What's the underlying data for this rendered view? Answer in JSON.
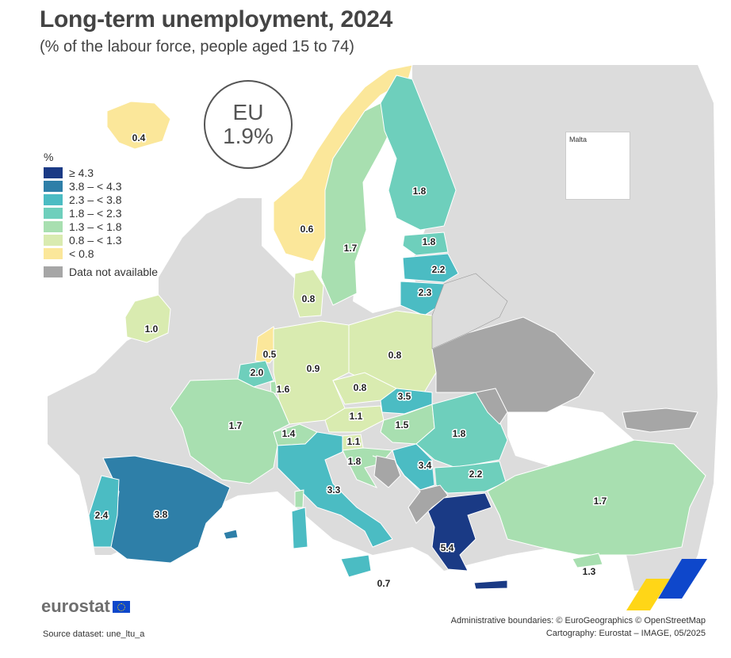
{
  "title": "Long-term unemployment, 2024",
  "subtitle": "(% of the labour force, people aged 15 to 74)",
  "eu": {
    "label": "EU",
    "value": "1.9%"
  },
  "legend": {
    "unit": "%",
    "classes": [
      {
        "label": "≥ 4.3",
        "color": "#1a3a85"
      },
      {
        "label": "3.8 – < 4.3",
        "color": "#2e7fa8"
      },
      {
        "label": "2.3 – < 3.8",
        "color": "#4bbcc3"
      },
      {
        "label": "1.8 – < 2.3",
        "color": "#6ecfbc"
      },
      {
        "label": "1.3 – < 1.8",
        "color": "#a8dfb0"
      },
      {
        "label": "0.8 – < 1.3",
        "color": "#d9ebb0"
      },
      {
        "label": "< 0.8",
        "color": "#fbe79a"
      }
    ],
    "na": {
      "label": "Data not available",
      "color": "#a6a6a6"
    }
  },
  "inset": {
    "title": "Malta",
    "value": "0.7"
  },
  "colors": {
    "non_eu": "#dcdcdc",
    "sea": "#ffffff",
    "border": "#ffffff"
  },
  "regions": [
    {
      "name": "Iceland",
      "value": "0.4"
    },
    {
      "name": "Norway",
      "value": "0.6"
    },
    {
      "name": "Sweden",
      "value": "1.7"
    },
    {
      "name": "Finland",
      "value": "1.8"
    },
    {
      "name": "Estonia",
      "value": "1.8"
    },
    {
      "name": "Latvia",
      "value": "2.2"
    },
    {
      "name": "Lithuania",
      "value": "2.3"
    },
    {
      "name": "Denmark",
      "value": "0.8"
    },
    {
      "name": "Ireland",
      "value": "1.0"
    },
    {
      "name": "Netherlands",
      "value": "0.5"
    },
    {
      "name": "Belgium",
      "value": "2.0"
    },
    {
      "name": "Luxembourg",
      "value": "1.6"
    },
    {
      "name": "Germany",
      "value": "0.9"
    },
    {
      "name": "Poland",
      "value": "0.8"
    },
    {
      "name": "Czechia",
      "value": "0.8"
    },
    {
      "name": "Slovakia",
      "value": "3.5"
    },
    {
      "name": "Austria",
      "value": "1.1"
    },
    {
      "name": "Hungary",
      "value": "1.5"
    },
    {
      "name": "Switzerland",
      "value": "1.4"
    },
    {
      "name": "Slovenia",
      "value": "1.1"
    },
    {
      "name": "Croatia",
      "value": "1.8"
    },
    {
      "name": "Serbia",
      "value": "3.4"
    },
    {
      "name": "Romania",
      "value": "1.8"
    },
    {
      "name": "Bulgaria",
      "value": "2.2"
    },
    {
      "name": "France",
      "value": "1.7"
    },
    {
      "name": "Spain",
      "value": "3.8"
    },
    {
      "name": "Portugal",
      "value": "2.4"
    },
    {
      "name": "Italy",
      "value": "3.3"
    },
    {
      "name": "Malta",
      "value": "0.7"
    },
    {
      "name": "Greece",
      "value": "5.4"
    },
    {
      "name": "Türkiye",
      "value": "1.7"
    },
    {
      "name": "Cyprus",
      "value": "1.3"
    }
  ],
  "footer": {
    "logo": "eurostat",
    "source": "Source dataset: une_ltu_a",
    "credits_1": "Administrative boundaries: © EuroGeographics © OpenStreetMap",
    "credits_2": "Cartography: Eurostat – IMAGE, 05/2025"
  }
}
